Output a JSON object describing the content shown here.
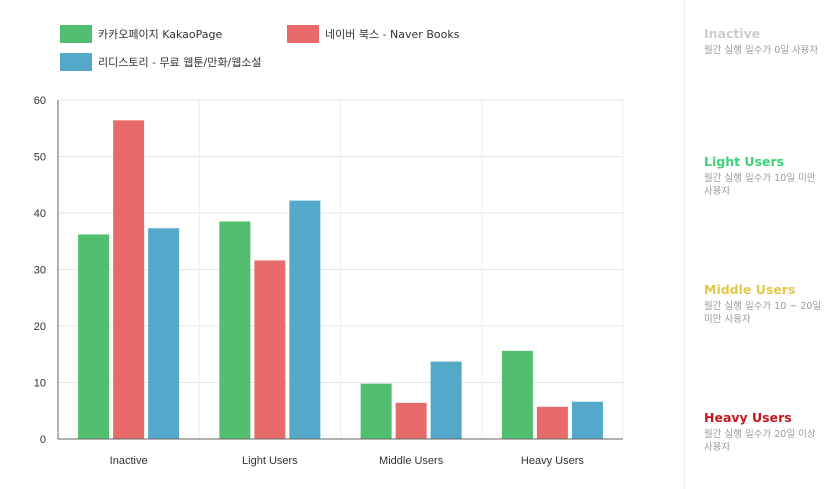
{
  "colors": {
    "kakao": "#52be6f",
    "naver": "#e86b6b",
    "ridi": "#54a8c9"
  },
  "chart_data": {
    "type": "bar",
    "categories": [
      "Inactive",
      "Light Users",
      "Middle Users",
      "Heavy Users"
    ],
    "series": [
      {
        "name": "카카오페이지 KakaoPage",
        "values": [
          36.2,
          38.5,
          9.8,
          15.6
        ]
      },
      {
        "name": "네이버 북스 - Naver Books",
        "values": [
          56.4,
          31.6,
          6.4,
          5.7
        ]
      },
      {
        "name": "리디스토리 - 무료 웹툰/만화/웹소설",
        "values": [
          37.3,
          42.2,
          13.7,
          6.6
        ]
      }
    ],
    "ylim": [
      0,
      60
    ],
    "yticks": [
      "0",
      "10",
      "20",
      "30",
      "40",
      "50",
      "60"
    ],
    "grid": true,
    "legend": "top-left"
  },
  "segments": [
    {
      "title": "Inactive",
      "desc": "월간 실행 일수가 0일 사용자",
      "color": "#cccccc"
    },
    {
      "title": "Light Users",
      "desc": "월간 실행 일수가 10일 미만 사용자",
      "color": "#3dd17a"
    },
    {
      "title": "Middle Users",
      "desc": "월간 실행 일수가 10 ~ 20일 미만 사용자",
      "color": "#e3c84a"
    },
    {
      "title": "Heavy Users",
      "desc": "월간 실행 일수가 20일 이상 사용자",
      "color": "#c4161c"
    }
  ]
}
